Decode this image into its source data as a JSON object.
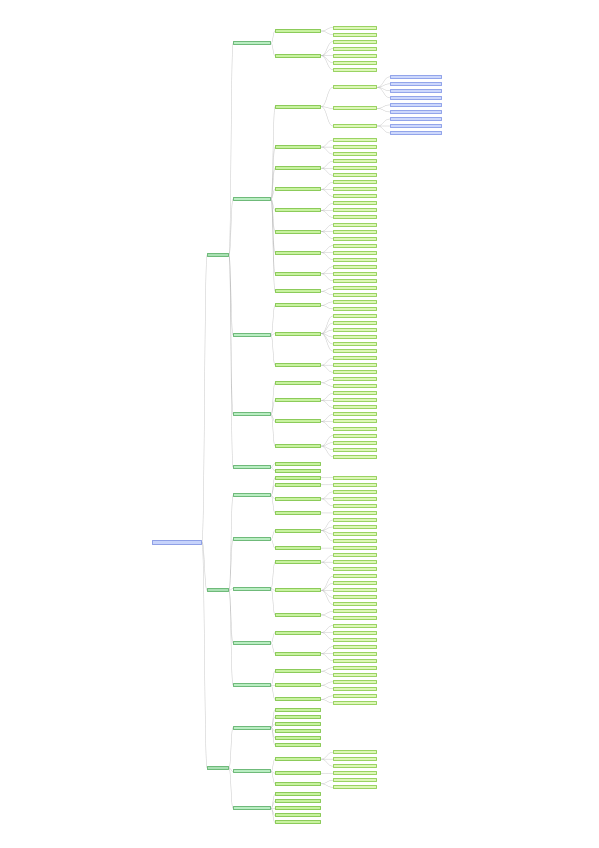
{
  "mindmap": {
    "root_label": "",
    "branches": [
      {
        "label": "",
        "children": [
          {
            "label": "",
            "children": [
              {
                "label": "",
                "leaves": 2
              },
              {
                "label": "",
                "leaves": 5
              }
            ]
          },
          {
            "label": "",
            "children": [
              {
                "label": "",
                "children": [
                  {
                    "label": "",
                    "leaves": 4
                  },
                  {
                    "label": "",
                    "leaves": 2
                  },
                  {
                    "label": "",
                    "leaves": 3
                  }
                ]
              },
              {
                "label": "",
                "leaves": 3
              },
              {
                "label": "",
                "leaves": 3
              },
              {
                "label": "",
                "leaves": 3
              },
              {
                "label": "",
                "leaves": 3
              },
              {
                "label": "",
                "leaves": 3
              },
              {
                "label": "",
                "leaves": 3
              },
              {
                "label": "",
                "leaves": 3
              },
              {
                "label": "",
                "leaves": 2
              }
            ]
          },
          {
            "label": "",
            "children": [
              {
                "label": "",
                "leaves": 2
              },
              {
                "label": "",
                "leaves": 6
              },
              {
                "label": "",
                "leaves": 3
              }
            ]
          },
          {
            "label": "",
            "children": [
              {
                "label": "",
                "leaves": 2
              },
              {
                "label": "",
                "leaves": 3
              },
              {
                "label": "",
                "leaves": 3
              },
              {
                "label": "",
                "leaves": 4
              }
            ]
          },
          {
            "label": "",
            "leaves": 2
          }
        ]
      },
      {
        "label": "",
        "children": [
          {
            "label": "",
            "children": [
              {
                "label": "",
                "leaves": 1
              },
              {
                "label": "",
                "leaves": 1
              },
              {
                "label": "",
                "leaves": 3
              },
              {
                "label": "",
                "leaves": 1
              }
            ]
          },
          {
            "label": "",
            "children": [
              {
                "label": "",
                "leaves": 4
              },
              {
                "label": "",
                "leaves": 1
              }
            ]
          },
          {
            "label": "",
            "children": [
              {
                "label": "",
                "leaves": 3
              },
              {
                "label": "",
                "leaves": 5
              },
              {
                "label": "",
                "leaves": 2
              }
            ]
          },
          {
            "label": "",
            "children": [
              {
                "label": "",
                "leaves": 3
              },
              {
                "label": "",
                "leaves": 3
              }
            ]
          },
          {
            "label": "",
            "children": [
              {
                "label": "",
                "leaves": 2
              },
              {
                "label": "",
                "leaves": 2
              },
              {
                "label": "",
                "leaves": 2
              }
            ]
          }
        ]
      },
      {
        "label": "",
        "children": [
          {
            "label": "",
            "leaves": 6
          },
          {
            "label": "",
            "children": [
              {
                "label": "",
                "leaves": 3
              },
              {
                "label": "",
                "leaves": 1
              },
              {
                "label": "",
                "leaves": 2
              }
            ]
          },
          {
            "label": "",
            "leaves": 5
          }
        ]
      }
    ],
    "colors": {
      "root": "#c7d3fb",
      "branch": "#a9e0b3",
      "subbranch": "#b9edc2",
      "topic": "#c8f2a0",
      "leaf": "#ddf7b8",
      "detail": "#cdd8fc",
      "connector": "#b9b9b9"
    }
  }
}
